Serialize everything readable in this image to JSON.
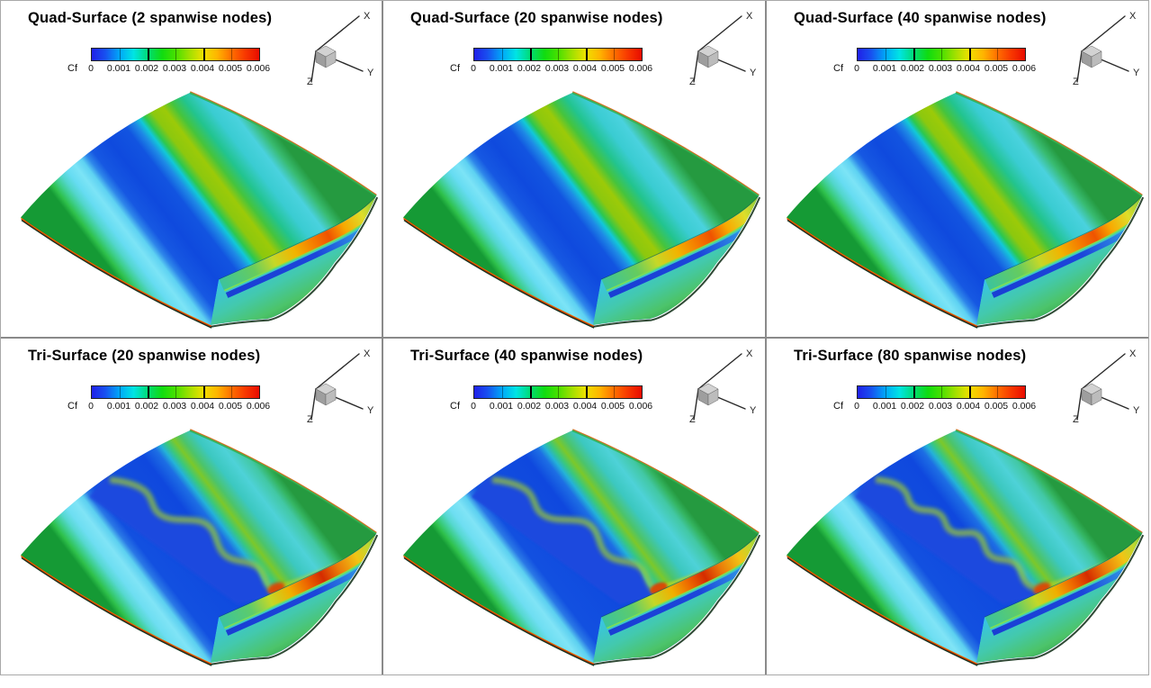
{
  "figure": {
    "legend_label": "Cf",
    "legend_ticks": [
      "0",
      "0.001",
      "0.002",
      "0.003",
      "0.004",
      "0.005",
      "0.006"
    ],
    "axis_labels": {
      "x": "X",
      "y": "Y",
      "z": "Z"
    },
    "panels": [
      {
        "title": "Quad-Surface (2 spanwise nodes)",
        "variant": "quad"
      },
      {
        "title": "Quad-Surface (20 spanwise nodes)",
        "variant": "quad"
      },
      {
        "title": "Quad-Surface (40 spanwise nodes)",
        "variant": "quad"
      },
      {
        "title": "Tri-Surface (20 spanwise nodes)",
        "variant": "tri"
      },
      {
        "title": "Tri-Surface (40 spanwise nodes)",
        "variant": "tri"
      },
      {
        "title": "Tri-Surface (80 spanwise nodes)",
        "variant": "tri"
      }
    ],
    "colormap": [
      [
        0,
        "#2020e8"
      ],
      [
        0.08,
        "#1850f0"
      ],
      [
        0.167,
        "#00a8f8"
      ],
      [
        0.25,
        "#00e4e4"
      ],
      [
        0.333,
        "#00dc78"
      ],
      [
        0.42,
        "#10dc10"
      ],
      [
        0.5,
        "#48e000"
      ],
      [
        0.583,
        "#a0e000"
      ],
      [
        0.667,
        "#f0e000"
      ],
      [
        0.75,
        "#ffb400"
      ],
      [
        0.833,
        "#ff7000"
      ],
      [
        0.917,
        "#f83800"
      ],
      [
        1,
        "#e80c00"
      ]
    ],
    "surface_bands": {
      "quad": [
        [
          0,
          "#159a35"
        ],
        [
          0.025,
          "#2ec04a"
        ],
        [
          0.055,
          "#3ecf8e"
        ],
        [
          0.085,
          "#52d6cc"
        ],
        [
          0.12,
          "#66dcf2"
        ],
        [
          0.165,
          "#7ce4f6"
        ],
        [
          0.205,
          "#5ed2f2"
        ],
        [
          0.235,
          "#2e86ea"
        ],
        [
          0.27,
          "#1658e2"
        ],
        [
          0.36,
          "#0f4ade"
        ],
        [
          0.46,
          "#1254e0"
        ],
        [
          0.505,
          "#1e8ae6"
        ],
        [
          0.535,
          "#12c8d8"
        ],
        [
          0.56,
          "#2cc850"
        ],
        [
          0.6,
          "#8cc80e"
        ],
        [
          0.655,
          "#9cca08"
        ],
        [
          0.7,
          "#46c43c"
        ],
        [
          0.755,
          "#22c48e"
        ],
        [
          0.825,
          "#3accd2"
        ],
        [
          0.9,
          "#4ad2de"
        ],
        [
          0.955,
          "#38bb70"
        ],
        [
          1,
          "#259a40"
        ]
      ],
      "tri": [
        [
          0,
          "#159a35"
        ],
        [
          0.025,
          "#2ec04a"
        ],
        [
          0.055,
          "#3ecf8e"
        ],
        [
          0.085,
          "#56d8d0"
        ],
        [
          0.12,
          "#6edef2"
        ],
        [
          0.17,
          "#80e4f6"
        ],
        [
          0.21,
          "#5cd0f0"
        ],
        [
          0.24,
          "#2a78e6"
        ],
        [
          0.28,
          "#1250e0"
        ],
        [
          0.55,
          "#0f48de"
        ],
        [
          0.615,
          "#1d6ee4"
        ],
        [
          0.645,
          "#24b2d8"
        ],
        [
          0.675,
          "#3ac87c"
        ],
        [
          0.71,
          "#7cc82a"
        ],
        [
          0.745,
          "#4cc46a"
        ],
        [
          0.8,
          "#3cc8c0"
        ],
        [
          0.87,
          "#4ed2d8"
        ],
        [
          0.935,
          "#42c8a4"
        ],
        [
          0.97,
          "#34b562"
        ],
        [
          1,
          "#259a40"
        ]
      ]
    },
    "curl_hot": {
      "quad": [
        [
          0,
          "#3cc49c"
        ],
        [
          0.2,
          "#66cc5e"
        ],
        [
          0.32,
          "#c6d828"
        ],
        [
          0.45,
          "#f2b400"
        ],
        [
          0.56,
          "#f57f00"
        ],
        [
          0.66,
          "#ef5300"
        ],
        [
          0.76,
          "#f9a800"
        ],
        [
          0.88,
          "#dede2a"
        ],
        [
          1,
          "#7fc93e"
        ]
      ],
      "tri": [
        [
          0,
          "#3cc49c"
        ],
        [
          0.18,
          "#5ecc6a"
        ],
        [
          0.3,
          "#c4d828"
        ],
        [
          0.42,
          "#f0b000"
        ],
        [
          0.52,
          "#ee6a00"
        ],
        [
          0.62,
          "#d52c00"
        ],
        [
          0.72,
          "#ea7a08"
        ],
        [
          0.84,
          "#f2c414"
        ],
        [
          0.93,
          "#bcd932"
        ],
        [
          1,
          "#7fc93e"
        ]
      ]
    },
    "curl_blue": [
      [
        0,
        "#1a3ed4"
      ],
      [
        0.55,
        "#1c46da"
      ],
      [
        0.8,
        "#2e8ce4"
      ],
      [
        0.92,
        "#3ec8e8"
      ],
      [
        1,
        "#52d8b8"
      ]
    ],
    "curl_tail": [
      [
        0,
        "#38c4e4"
      ],
      [
        0.45,
        "#43c9ac"
      ],
      [
        0.8,
        "#4cc46a"
      ],
      [
        1,
        "#3aaa50"
      ]
    ],
    "edge_colors": {
      "le_shadow": "#18351f",
      "le_line": "#c22b00",
      "le_inner": "#f08a00",
      "te_line": "#d85b00",
      "te_inner": "#2fae4e"
    },
    "transition_overlay": {
      "blue": "#1b49de",
      "band": "#a0cf2e",
      "hotspot": "#e03c00",
      "fold_streak": "#c8d820"
    }
  },
  "chart_data": {
    "type": "heatmap",
    "title": "Skin-friction coefficient (Cf) contours on a wing surface: quad vs tri surface meshes with increasing spanwise resolution",
    "variable": "Cf",
    "colorbar": {
      "label": "Cf",
      "min": 0,
      "max": 0.006,
      "ticks": [
        0,
        0.001,
        0.002,
        0.003,
        0.004,
        0.005,
        0.006
      ],
      "colors_low_to_high": [
        "blue",
        "cyan",
        "green",
        "yellow",
        "orange",
        "red"
      ]
    },
    "layout": "2 rows x 3 columns of 3D surface contour panels, each with its own Cf colorbar and X/Y/Z orientation triad",
    "panels": [
      {
        "row": 1,
        "col": 1,
        "title": "Quad-Surface (2 spanwise nodes)",
        "mesh": "quad",
        "spanwise_nodes": 2,
        "contour_pattern": "straight spanwise-uniform bands; laminar low-Cf blue band mid-chord, yellow-green reattachment band, orange/red strip on trailing-edge curl"
      },
      {
        "row": 1,
        "col": 2,
        "title": "Quad-Surface (20 spanwise nodes)",
        "mesh": "quad",
        "spanwise_nodes": 20,
        "contour_pattern": "straight spanwise-uniform bands (same as 2-node case)"
      },
      {
        "row": 1,
        "col": 3,
        "title": "Quad-Surface (40 spanwise nodes)",
        "mesh": "quad",
        "spanwise_nodes": 40,
        "contour_pattern": "straight spanwise-uniform bands (same as 2-node case)"
      },
      {
        "row": 2,
        "col": 1,
        "title": "Tri-Surface (20 spanwise nodes)",
        "mesh": "tri",
        "spanwise_nodes": 20,
        "contour_pattern": "enlarged blue separation region with large wavy transition front; red hot spot on trailing-edge curl"
      },
      {
        "row": 2,
        "col": 2,
        "title": "Tri-Surface (40 spanwise nodes)",
        "mesh": "tri",
        "spanwise_nodes": 40,
        "contour_pattern": "wavy transition front, slightly sharper than 20-node case"
      },
      {
        "row": 2,
        "col": 3,
        "title": "Tri-Surface (80 spanwise nodes)",
        "mesh": "tri",
        "spanwise_nodes": 80,
        "contour_pattern": "wavy transition front with finer small-scale undulations"
      }
    ],
    "axes": {
      "orientation_triad": [
        "X",
        "Y",
        "Z"
      ]
    }
  }
}
